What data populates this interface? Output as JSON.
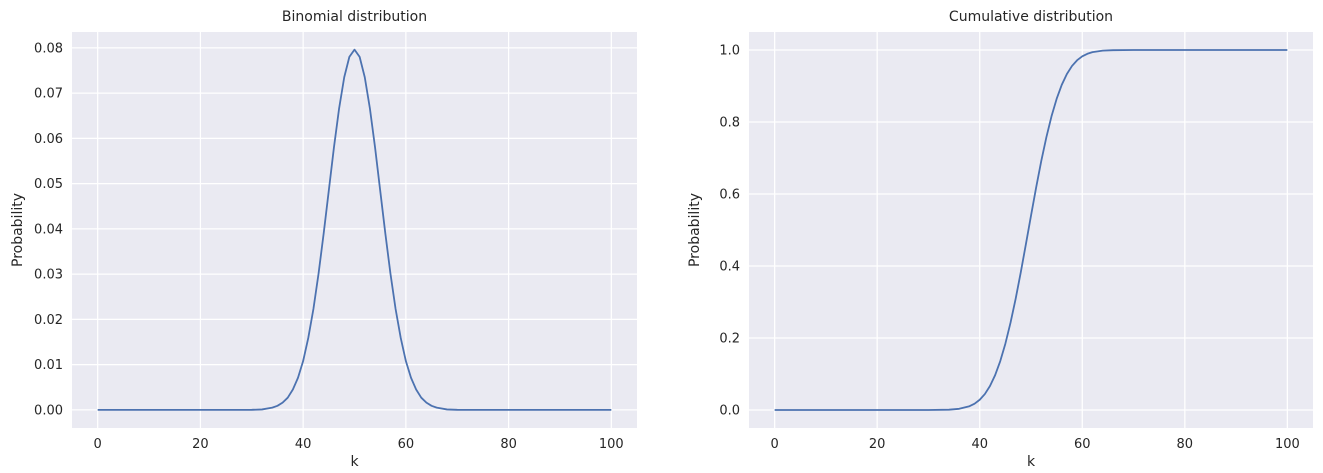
{
  "chart_data": [
    {
      "type": "line",
      "title": "Binomial distribution",
      "xlabel": "k",
      "ylabel": "Probability",
      "xlim": [
        -5,
        105
      ],
      "ylim": [
        -0.004,
        0.0835
      ],
      "xticks": [
        0,
        20,
        40,
        60,
        80,
        100
      ],
      "xtick_labels": [
        "0",
        "20",
        "40",
        "60",
        "80",
        "100"
      ],
      "yticks": [
        0,
        0.01,
        0.02,
        0.03,
        0.04,
        0.05,
        0.06,
        0.07,
        0.08
      ],
      "ytick_labels": [
        "0.00",
        "0.01",
        "0.02",
        "0.03",
        "0.04",
        "0.05",
        "0.06",
        "0.07",
        "0.08"
      ],
      "grid": true,
      "series": [
        {
          "color": "#4c72b0",
          "x": [
            0,
            30,
            32,
            34,
            35,
            36,
            37,
            38,
            39,
            40,
            41,
            42,
            43,
            44,
            45,
            46,
            47,
            48,
            49,
            50,
            51,
            52,
            53,
            54,
            55,
            56,
            57,
            58,
            59,
            60,
            61,
            62,
            63,
            64,
            65,
            66,
            68,
            70,
            100
          ],
          "y": [
            0,
            2e-05,
            0.0001,
            0.0005,
            0.0009,
            0.0016,
            0.0027,
            0.0045,
            0.0071,
            0.0108,
            0.0159,
            0.0223,
            0.0301,
            0.039,
            0.0485,
            0.058,
            0.0666,
            0.0735,
            0.078,
            0.0796,
            0.078,
            0.0735,
            0.0666,
            0.058,
            0.0485,
            0.039,
            0.0301,
            0.0223,
            0.0159,
            0.0108,
            0.0071,
            0.0045,
            0.0027,
            0.0016,
            0.0009,
            0.0005,
            0.0001,
            2e-05,
            0
          ]
        }
      ]
    },
    {
      "type": "line",
      "title": "Cumulative distribution",
      "xlabel": "k",
      "ylabel": "Probability",
      "xlim": [
        -5,
        105
      ],
      "ylim": [
        -0.05,
        1.05
      ],
      "xticks": [
        0,
        20,
        40,
        60,
        80,
        100
      ],
      "xtick_labels": [
        "0",
        "20",
        "40",
        "60",
        "80",
        "100"
      ],
      "yticks": [
        0,
        0.2,
        0.4,
        0.6,
        0.8,
        1.0
      ],
      "ytick_labels": [
        "0.0",
        "0.2",
        "0.4",
        "0.6",
        "0.8",
        "1.0"
      ],
      "grid": true,
      "series": [
        {
          "color": "#4c72b0",
          "x": [
            0,
            30,
            34,
            36,
            38,
            39,
            40,
            41,
            42,
            43,
            44,
            45,
            46,
            47,
            48,
            49,
            50,
            51,
            52,
            53,
            54,
            55,
            56,
            57,
            58,
            59,
            60,
            61,
            62,
            64,
            66,
            70,
            100
          ],
          "y": [
            0,
            4e-05,
            0.0009,
            0.0033,
            0.0105,
            0.0176,
            0.0284,
            0.0443,
            0.0666,
            0.0967,
            0.1356,
            0.1841,
            0.2421,
            0.3086,
            0.3822,
            0.4602,
            0.5398,
            0.6178,
            0.6914,
            0.7579,
            0.8159,
            0.8644,
            0.9033,
            0.9334,
            0.9557,
            0.9716,
            0.9824,
            0.9895,
            0.994,
            0.9982,
            0.9995,
            0.99996,
            1
          ]
        }
      ]
    }
  ]
}
